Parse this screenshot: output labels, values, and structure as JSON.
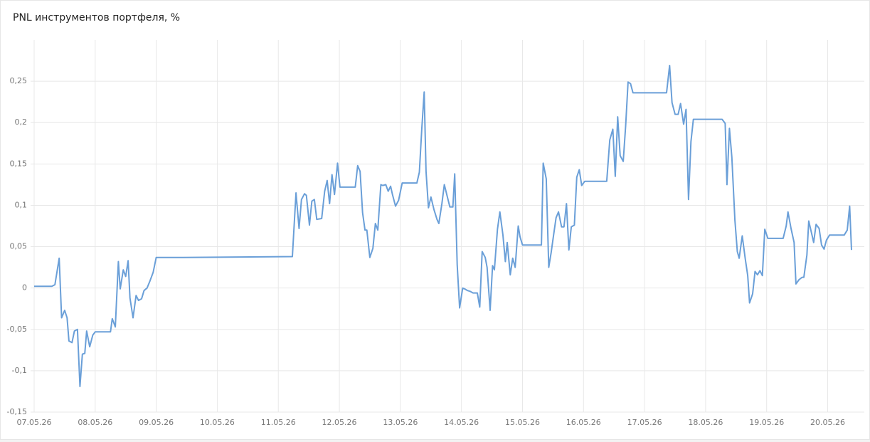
{
  "chart_data": {
    "type": "line",
    "title": "PNL инструментов портфеля, %",
    "color": "#6a9fd8",
    "grid": true,
    "xlim": [
      0,
      13.6
    ],
    "xticks": [
      {
        "value": 0,
        "label": "07.05.26"
      },
      {
        "value": 1,
        "label": "08.05.26"
      },
      {
        "value": 2,
        "label": "09.05.26"
      },
      {
        "value": 3,
        "label": "10.05.26"
      },
      {
        "value": 4,
        "label": "11.05.26"
      },
      {
        "value": 5,
        "label": "12.05.26"
      },
      {
        "value": 6,
        "label": "13.05.26"
      },
      {
        "value": 7,
        "label": "14.05.26"
      },
      {
        "value": 8,
        "label": "15.05.26"
      },
      {
        "value": 9,
        "label": "16.05.26"
      },
      {
        "value": 10,
        "label": "17.05.26"
      },
      {
        "value": 11,
        "label": "18.05.26"
      },
      {
        "value": 12,
        "label": "19.05.26"
      },
      {
        "value": 13,
        "label": "20.05.26"
      }
    ],
    "ylim": [
      -0.15,
      0.3
    ],
    "yticks": [
      {
        "value": -0.15,
        "label": "-0,15"
      },
      {
        "value": -0.1,
        "label": "-0,1"
      },
      {
        "value": -0.05,
        "label": "-0,05"
      },
      0,
      {
        "value": 0.05,
        "label": "0,05"
      },
      {
        "value": 0.1,
        "label": "0,1"
      },
      {
        "value": 0.15,
        "label": "0,15"
      },
      {
        "value": 0.2,
        "label": "0,2"
      },
      {
        "value": 0.25,
        "label": "0,25"
      }
    ],
    "x": [
      0,
      0.29,
      0.34,
      0.41,
      0.45,
      0.5,
      0.54,
      0.57,
      0.62,
      0.66,
      0.71,
      0.75,
      0.79,
      0.83,
      0.86,
      0.91,
      0.96,
      1.0,
      1.25,
      1.28,
      1.33,
      1.38,
      1.41,
      1.46,
      1.5,
      1.54,
      1.57,
      1.62,
      1.67,
      1.71,
      1.76,
      1.8,
      1.85,
      1.9,
      1.95,
      2.0,
      2.44,
      4.23,
      4.29,
      4.34,
      4.38,
      4.43,
      4.46,
      4.51,
      4.55,
      4.59,
      4.63,
      4.71,
      4.76,
      4.8,
      4.84,
      4.88,
      4.92,
      4.97,
      5.01,
      5.26,
      5.3,
      5.34,
      5.38,
      5.42,
      5.45,
      5.5,
      5.55,
      5.59,
      5.63,
      5.68,
      5.71,
      5.76,
      5.8,
      5.84,
      5.87,
      5.92,
      5.97,
      6.03,
      6.27,
      6.31,
      6.35,
      6.39,
      6.42,
      6.46,
      6.5,
      6.55,
      6.6,
      6.63,
      6.68,
      6.72,
      6.77,
      6.81,
      6.86,
      6.89,
      6.93,
      6.97,
      7.02,
      7.05,
      7.1,
      7.14,
      7.19,
      7.26,
      7.3,
      7.34,
      7.39,
      7.42,
      7.47,
      7.51,
      7.54,
      7.59,
      7.63,
      7.68,
      7.72,
      7.75,
      7.8,
      7.84,
      7.88,
      7.93,
      7.96,
      8.0,
      8.31,
      8.34,
      8.39,
      8.43,
      8.47,
      8.51,
      8.55,
      8.59,
      8.64,
      8.68,
      8.72,
      8.76,
      8.8,
      8.85,
      8.89,
      8.93,
      8.97,
      9.02,
      9.38,
      9.43,
      9.48,
      9.52,
      9.56,
      9.6,
      9.65,
      9.69,
      9.73,
      9.77,
      9.81,
      10.36,
      10.41,
      10.45,
      10.5,
      10.55,
      10.59,
      10.64,
      10.68,
      10.72,
      10.76,
      10.8,
      10.85,
      11.27,
      11.32,
      11.35,
      11.39,
      11.43,
      11.48,
      11.52,
      11.55,
      11.6,
      11.65,
      11.69,
      11.72,
      11.77,
      11.81,
      11.85,
      11.89,
      11.93,
      11.97,
      12.02,
      12.27,
      12.32,
      12.35,
      12.4,
      12.45,
      12.48,
      12.53,
      12.58,
      12.61,
      12.66,
      12.69,
      12.74,
      12.77,
      12.81,
      12.86,
      12.9,
      12.94,
      12.98,
      13.03,
      13.27,
      13.32,
      13.36,
      13.39
    ],
    "values": [
      0.002,
      0.002,
      0.004,
      0.036,
      -0.036,
      -0.027,
      -0.036,
      -0.064,
      -0.066,
      -0.052,
      -0.05,
      -0.119,
      -0.08,
      -0.079,
      -0.052,
      -0.071,
      -0.057,
      -0.053,
      -0.053,
      -0.037,
      -0.047,
      0.032,
      -0.001,
      0.022,
      0.014,
      0.033,
      -0.012,
      -0.036,
      -0.009,
      -0.015,
      -0.013,
      -0.003,
      0,
      0.009,
      0.019,
      0.037,
      0.037,
      0.038,
      0.115,
      0.072,
      0.107,
      0.114,
      0.112,
      0.076,
      0.105,
      0.107,
      0.083,
      0.084,
      0.117,
      0.13,
      0.102,
      0.137,
      0.113,
      0.151,
      0.122,
      0.122,
      0.148,
      0.141,
      0.091,
      0.07,
      0.07,
      0.037,
      0.048,
      0.078,
      0.07,
      0.125,
      0.124,
      0.125,
      0.117,
      0.123,
      0.113,
      0.099,
      0.106,
      0.127,
      0.127,
      0.14,
      0.192,
      0.237,
      0.141,
      0.097,
      0.11,
      0.095,
      0.083,
      0.078,
      0.102,
      0.125,
      0.11,
      0.098,
      0.098,
      0.138,
      0.028,
      -0.024,
      0,
      -0.001,
      -0.003,
      -0.004,
      -0.006,
      -0.006,
      -0.023,
      0.044,
      0.037,
      0.025,
      -0.027,
      0.027,
      0.022,
      0.071,
      0.092,
      0.064,
      0.032,
      0.055,
      0.016,
      0.036,
      0.025,
      0.075,
      0.062,
      0.052,
      0.052,
      0.151,
      0.132,
      0.025,
      0.043,
      0.064,
      0.085,
      0.092,
      0.074,
      0.074,
      0.102,
      0.046,
      0.074,
      0.076,
      0.134,
      0.143,
      0.124,
      0.129,
      0.129,
      0.179,
      0.192,
      0.135,
      0.207,
      0.16,
      0.153,
      0.196,
      0.249,
      0.247,
      0.236,
      0.236,
      0.269,
      0.224,
      0.21,
      0.21,
      0.223,
      0.198,
      0.216,
      0.107,
      0.177,
      0.204,
      0.204,
      0.204,
      0.199,
      0.125,
      0.193,
      0.158,
      0.082,
      0.044,
      0.036,
      0.063,
      0.035,
      0.015,
      -0.018,
      -0.007,
      0.02,
      0.016,
      0.021,
      0.015,
      0.071,
      0.06,
      0.06,
      0.075,
      0.092,
      0.072,
      0.055,
      0.005,
      0.01,
      0.013,
      0.013,
      0.04,
      0.081,
      0.065,
      0.055,
      0.077,
      0.072,
      0.052,
      0.047,
      0.058,
      0.064,
      0.064,
      0.07,
      0.099,
      0.046
    ]
  }
}
